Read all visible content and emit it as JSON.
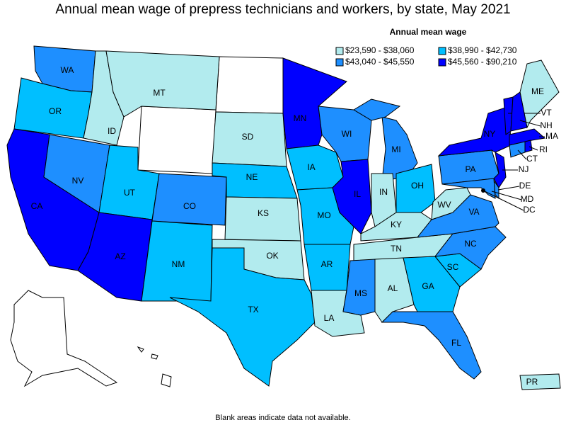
{
  "title": "Annual mean wage of prepress technicians and workers, by state, May 2021",
  "legend": {
    "title": "Annual mean wage",
    "classes": [
      {
        "label": "$23,590 - $38,060",
        "color": "#b2ebee"
      },
      {
        "label": "$38,990 - $42,730",
        "color": "#00bfff"
      },
      {
        "label": "$43,040 - $45,550",
        "color": "#1e8fff"
      },
      {
        "label": "$45,560 - $90,210",
        "color": "#0000ff"
      }
    ]
  },
  "states": [
    {
      "label": "WA",
      "class": 2
    },
    {
      "label": "OR",
      "class": 1
    },
    {
      "label": "CA",
      "class": 3
    },
    {
      "label": "NV",
      "class": 2
    },
    {
      "label": "ID",
      "class": 0
    },
    {
      "label": "MT",
      "class": 0
    },
    {
      "label": "UT",
      "class": 1
    },
    {
      "label": "AZ",
      "class": 3
    },
    {
      "label": "CO",
      "class": 2
    },
    {
      "label": "NM",
      "class": 1
    },
    {
      "label": "SD",
      "class": 0
    },
    {
      "label": "NE",
      "class": 1
    },
    {
      "label": "KS",
      "class": 0
    },
    {
      "label": "OK",
      "class": 0
    },
    {
      "label": "TX",
      "class": 1
    },
    {
      "label": "MN",
      "class": 3
    },
    {
      "label": "IA",
      "class": 1
    },
    {
      "label": "MO",
      "class": 1
    },
    {
      "label": "AR",
      "class": 1
    },
    {
      "label": "LA",
      "class": 0
    },
    {
      "label": "WI",
      "class": 2
    },
    {
      "label": "IL",
      "class": 3
    },
    {
      "label": "MI",
      "class": 2
    },
    {
      "label": "IN",
      "class": 0
    },
    {
      "label": "OH",
      "class": 1
    },
    {
      "label": "KY",
      "class": 0
    },
    {
      "label": "TN",
      "class": 0
    },
    {
      "label": "MS",
      "class": 2
    },
    {
      "label": "AL",
      "class": 0
    },
    {
      "label": "GA",
      "class": 1
    },
    {
      "label": "FL",
      "class": 2
    },
    {
      "label": "SC",
      "class": 1
    },
    {
      "label": "NC",
      "class": 2
    },
    {
      "label": "VA",
      "class": 2
    },
    {
      "label": "WV",
      "class": 0
    },
    {
      "label": "PA",
      "class": 2
    },
    {
      "label": "NY",
      "class": 3
    },
    {
      "label": "ME",
      "class": 0
    },
    {
      "label": "VT",
      "class": 3
    },
    {
      "label": "NH",
      "class": 3
    },
    {
      "label": "MA",
      "class": 3
    },
    {
      "label": "RI",
      "class": 3
    },
    {
      "label": "CT",
      "class": 2
    },
    {
      "label": "NJ",
      "class": 3
    },
    {
      "label": "DE",
      "class": 2
    },
    {
      "label": "MD",
      "class": 2
    },
    {
      "label": "DC",
      "class": 2
    },
    {
      "label": "PR",
      "class": 0
    }
  ],
  "footnote": "Blank areas indicate data not available."
}
